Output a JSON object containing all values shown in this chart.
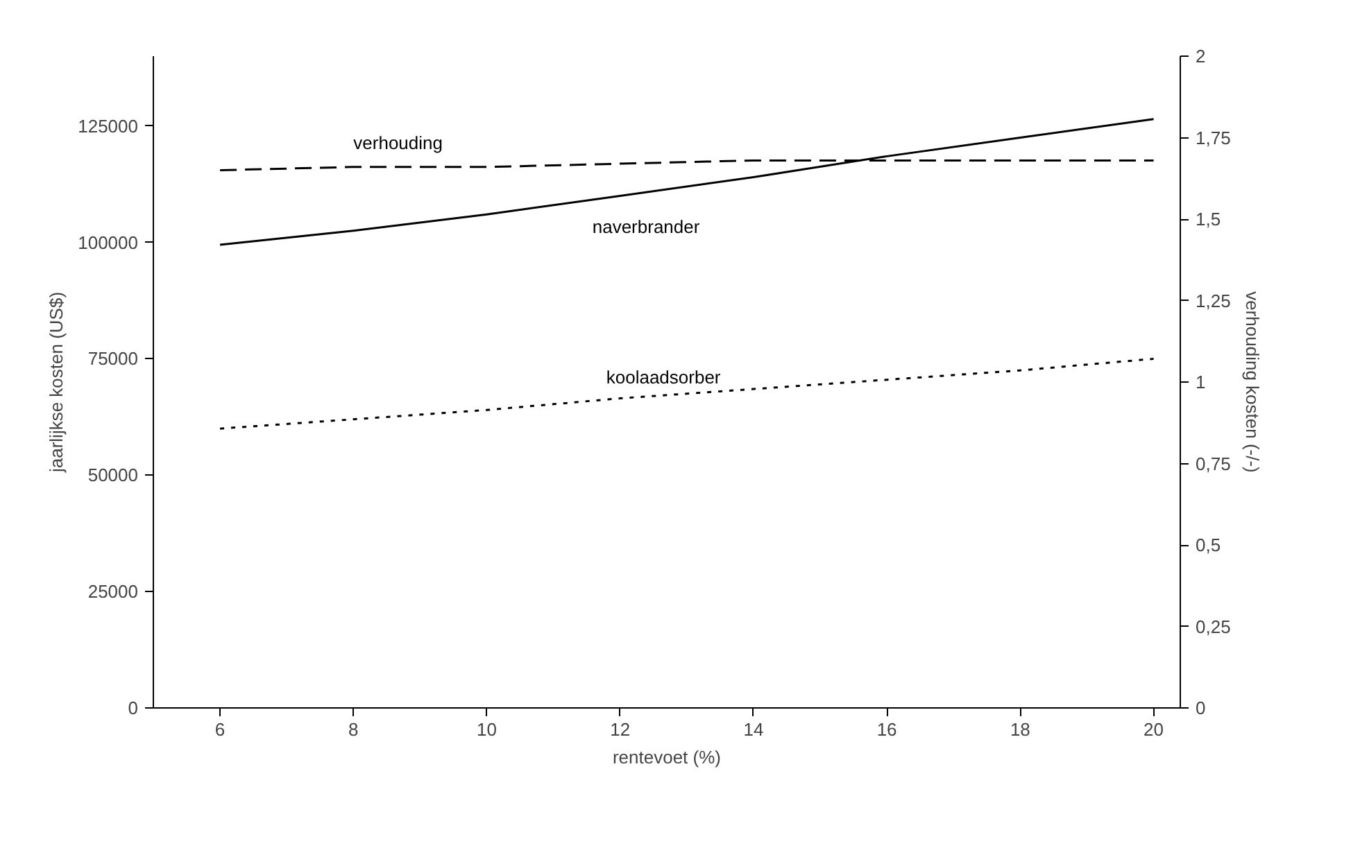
{
  "chart_data": {
    "type": "line",
    "xlabel": "rentevoet (%)",
    "ylabel": "jaarlijkse kosten (US$)",
    "y2label": "verhouding kosten (-/-)",
    "x": [
      6,
      8,
      10,
      12,
      14,
      16,
      18,
      20
    ],
    "series": [
      {
        "name": "naverbrander",
        "color": "#000000",
        "line_style": "solid",
        "values": [
          99500,
          102500,
          106000,
          110000,
          114000,
          118500,
          122500,
          126500
        ]
      },
      {
        "name": "koolaadsorber",
        "color": "#000000",
        "line_style": "dotted",
        "values": [
          60000,
          62000,
          64000,
          66500,
          68500,
          70500,
          72500,
          75000
        ]
      },
      {
        "name": "verhouding",
        "color": "#000000",
        "line_style": "dashed",
        "axis": "y2",
        "values": [
          1.65,
          1.66,
          1.66,
          1.67,
          1.68,
          1.68,
          1.68,
          1.68
        ]
      }
    ],
    "xlim": [
      5,
      20.4
    ],
    "xticks": [
      6,
      8,
      10,
      12,
      14,
      16,
      18,
      20
    ],
    "ylim": [
      0,
      140000
    ],
    "yticks": [
      0,
      25000,
      50000,
      75000,
      100000,
      125000
    ],
    "y2lim": [
      0,
      2
    ],
    "y2ticks": [
      {
        "value": 0,
        "label": "0"
      },
      {
        "value": 0.25,
        "label": "0,25"
      },
      {
        "value": 0.5,
        "label": "0,5"
      },
      {
        "value": 0.75,
        "label": "0,75"
      },
      {
        "value": 1,
        "label": "1"
      },
      {
        "value": 1.25,
        "label": "1,25"
      },
      {
        "value": 1.5,
        "label": "1,5"
      },
      {
        "value": 1.75,
        "label": "1,75"
      },
      {
        "value": 2,
        "label": "2"
      }
    ],
    "grid": false
  }
}
